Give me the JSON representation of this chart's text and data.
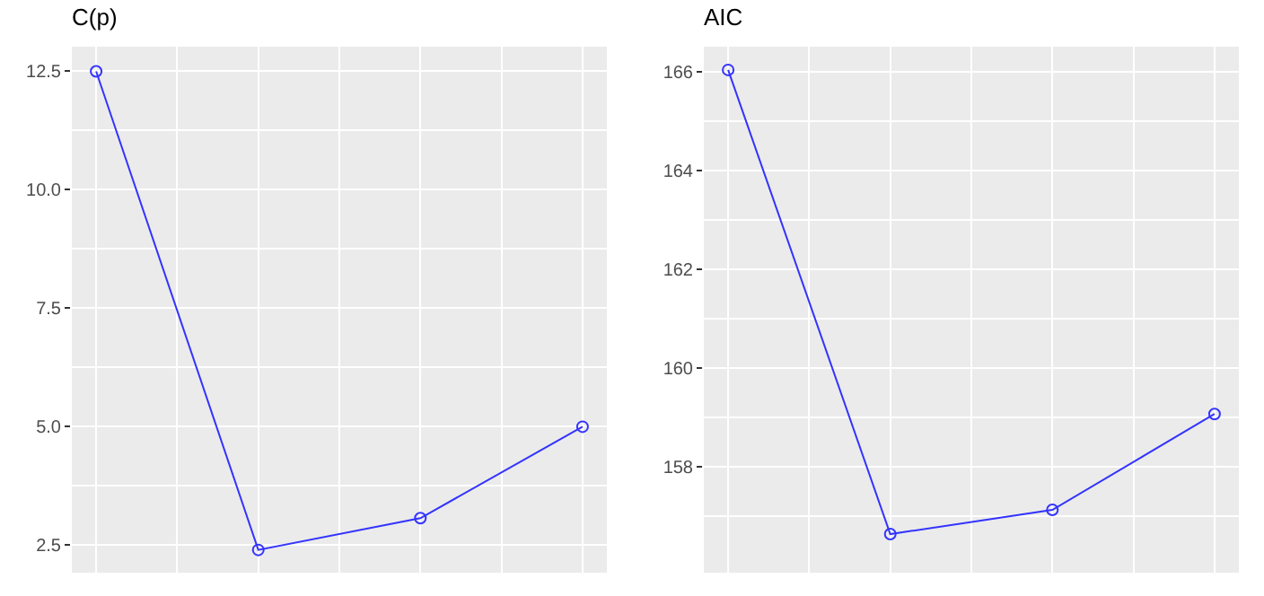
{
  "chart_data": [
    {
      "type": "line",
      "title": "C(p)",
      "categories": [
        null,
        null,
        null,
        null
      ],
      "series": [
        {
          "color": "#3333ff",
          "values": [
            12.5,
            2.4,
            3.07,
            5.0
          ]
        }
      ],
      "ylim": [
        1.92,
        13.02
      ],
      "yticks": [
        {
          "value": 2.5,
          "label": "2.5"
        },
        {
          "value": 5,
          "label": "5.0"
        },
        {
          "value": 7.5,
          "label": "7.5"
        },
        {
          "value": 10,
          "label": "10.0"
        },
        {
          "value": 12.5,
          "label": "12.5"
        }
      ],
      "grid": true,
      "marker": "circle",
      "line_style": "solid",
      "tick_labels": "y"
    },
    {
      "type": "line",
      "title": "AIC",
      "categories": [
        null,
        null,
        null,
        null
      ],
      "series": [
        {
          "color": "#3333ff",
          "values": [
            166.03,
            156.64,
            157.13,
            159.07
          ]
        }
      ],
      "ylim": [
        155.86,
        166.5
      ],
      "yticks": [
        158,
        160,
        162,
        164,
        166
      ],
      "grid": true,
      "marker": "circle",
      "line_style": "solid",
      "tick_labels": "y"
    }
  ]
}
